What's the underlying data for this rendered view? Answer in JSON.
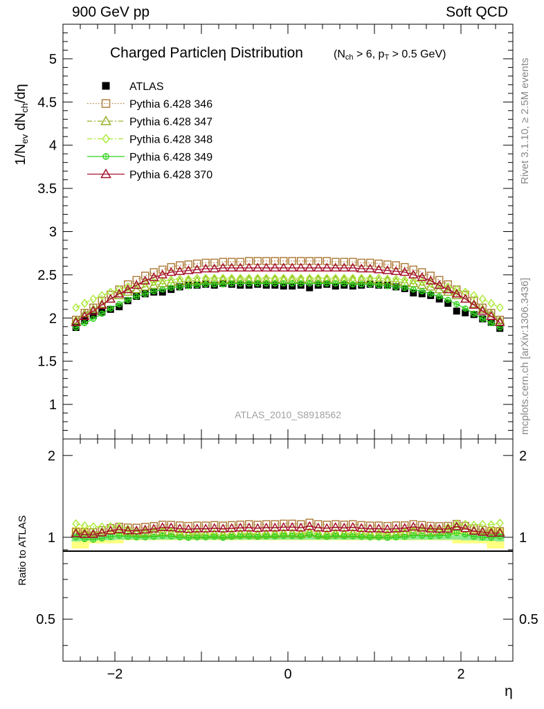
{
  "header": {
    "left": "900 GeV pp",
    "right": "Soft QCD"
  },
  "side_labels": {
    "rivet": "Rivet 3.1.10, ≥ 2.5M events",
    "mcplots": "mcplots.cern.ch [arXiv:1306.3436]"
  },
  "watermark": "ATLAS_2010_S8918562",
  "plot_title": {
    "main": "Charged Particleη Distribution",
    "sub": "(N_ch > 6, p_T > 0.5 GeV)"
  },
  "axis_labels": {
    "y_top": "1/N_ev dN_ch/dη",
    "y_bottom": "Ratio to ATLAS",
    "x": "η"
  },
  "ticks": {
    "top_y": [
      "1",
      "1.5",
      "2",
      "2.5",
      "3",
      "3.5",
      "4",
      "4.5",
      "5"
    ],
    "bottom_y": [
      "0.5",
      "1",
      "2"
    ],
    "x": [
      "−2",
      "0",
      "2"
    ]
  },
  "chart_data": {
    "type": "scatter",
    "x_name": "eta",
    "x": [
      -2.45,
      -2.35,
      -2.25,
      -2.15,
      -2.05,
      -1.95,
      -1.85,
      -1.75,
      -1.65,
      -1.55,
      -1.45,
      -1.35,
      -1.25,
      -1.15,
      -1.05,
      -0.95,
      -0.85,
      -0.75,
      -0.65,
      -0.55,
      -0.45,
      -0.35,
      -0.25,
      -0.15,
      -0.05,
      0.05,
      0.15,
      0.25,
      0.35,
      0.45,
      0.55,
      0.65,
      0.75,
      0.85,
      0.95,
      1.05,
      1.15,
      1.25,
      1.35,
      1.45,
      1.55,
      1.65,
      1.75,
      1.85,
      1.95,
      2.05,
      2.15,
      2.25,
      2.35,
      2.45
    ],
    "xlim": [
      -2.6,
      2.6
    ],
    "main_ylim": [
      0.6,
      5.4
    ],
    "ratio_ylim": [
      0.35,
      2.3
    ],
    "ratio_scale": "log",
    "series": [
      {
        "name": "ATLAS",
        "color": "#000000",
        "marker": "square-filled",
        "line": "none",
        "values": [
          1.89,
          1.97,
          2.03,
          2.07,
          2.1,
          2.13,
          2.2,
          2.25,
          2.28,
          2.3,
          2.3,
          2.33,
          2.36,
          2.38,
          2.38,
          2.39,
          2.38,
          2.4,
          2.39,
          2.38,
          2.38,
          2.39,
          2.38,
          2.38,
          2.37,
          2.37,
          2.38,
          2.35,
          2.38,
          2.39,
          2.37,
          2.38,
          2.37,
          2.38,
          2.39,
          2.38,
          2.38,
          2.36,
          2.34,
          2.29,
          2.28,
          2.26,
          2.22,
          2.17,
          2.08,
          2.06,
          2.04,
          1.99,
          1.95,
          1.88
        ]
      },
      {
        "name": "Pythia 6.428 346",
        "color": "#b07e3e",
        "marker": "square-open",
        "line": "dotted",
        "values": [
          1.98,
          2.06,
          2.12,
          2.2,
          2.27,
          2.33,
          2.39,
          2.44,
          2.49,
          2.53,
          2.56,
          2.59,
          2.61,
          2.62,
          2.63,
          2.64,
          2.64,
          2.65,
          2.65,
          2.65,
          2.66,
          2.66,
          2.66,
          2.66,
          2.66,
          2.66,
          2.66,
          2.66,
          2.66,
          2.66,
          2.65,
          2.65,
          2.65,
          2.64,
          2.64,
          2.63,
          2.62,
          2.61,
          2.59,
          2.56,
          2.53,
          2.49,
          2.44,
          2.39,
          2.33,
          2.27,
          2.2,
          2.12,
          2.06,
          1.98
        ]
      },
      {
        "name": "Pythia 6.428 347",
        "color": "#94b026",
        "marker": "triangle-open",
        "line": "dashdot",
        "values": [
          1.97,
          2.05,
          2.1,
          2.16,
          2.22,
          2.26,
          2.3,
          2.33,
          2.36,
          2.38,
          2.4,
          2.41,
          2.42,
          2.43,
          2.43,
          2.44,
          2.44,
          2.44,
          2.44,
          2.44,
          2.44,
          2.44,
          2.44,
          2.44,
          2.44,
          2.44,
          2.44,
          2.44,
          2.44,
          2.44,
          2.44,
          2.44,
          2.44,
          2.44,
          2.44,
          2.43,
          2.43,
          2.42,
          2.41,
          2.4,
          2.38,
          2.36,
          2.33,
          2.3,
          2.26,
          2.22,
          2.16,
          2.1,
          2.05,
          1.97
        ]
      },
      {
        "name": "Pythia 6.428 348",
        "color": "#a8e832",
        "marker": "diamond-open",
        "line": "dashdot",
        "values": [
          2.12,
          2.17,
          2.22,
          2.26,
          2.3,
          2.33,
          2.36,
          2.38,
          2.4,
          2.42,
          2.43,
          2.44,
          2.45,
          2.45,
          2.46,
          2.46,
          2.46,
          2.46,
          2.46,
          2.46,
          2.46,
          2.46,
          2.46,
          2.46,
          2.46,
          2.46,
          2.46,
          2.46,
          2.46,
          2.46,
          2.46,
          2.46,
          2.46,
          2.46,
          2.46,
          2.46,
          2.45,
          2.45,
          2.44,
          2.43,
          2.42,
          2.4,
          2.38,
          2.36,
          2.33,
          2.3,
          2.26,
          2.22,
          2.17,
          2.12
        ]
      },
      {
        "name": "Pythia 6.428 349",
        "color": "#32d21e",
        "marker": "circle-plus",
        "line": "solid",
        "values": [
          1.89,
          1.94,
          1.99,
          2.05,
          2.11,
          2.16,
          2.21,
          2.25,
          2.28,
          2.31,
          2.33,
          2.35,
          2.36,
          2.37,
          2.38,
          2.39,
          2.39,
          2.39,
          2.4,
          2.4,
          2.4,
          2.4,
          2.4,
          2.4,
          2.4,
          2.4,
          2.4,
          2.4,
          2.4,
          2.4,
          2.4,
          2.4,
          2.39,
          2.39,
          2.39,
          2.38,
          2.37,
          2.36,
          2.35,
          2.33,
          2.31,
          2.28,
          2.25,
          2.21,
          2.16,
          2.11,
          2.05,
          1.99,
          1.94,
          1.89
        ]
      },
      {
        "name": "Pythia 6.428 370",
        "color": "#a5122c",
        "marker": "triangle-open",
        "line": "solid",
        "values": [
          1.95,
          2.02,
          2.08,
          2.15,
          2.22,
          2.28,
          2.33,
          2.38,
          2.43,
          2.47,
          2.5,
          2.53,
          2.54,
          2.55,
          2.56,
          2.57,
          2.57,
          2.58,
          2.58,
          2.58,
          2.58,
          2.58,
          2.58,
          2.58,
          2.58,
          2.58,
          2.58,
          2.58,
          2.58,
          2.58,
          2.58,
          2.58,
          2.58,
          2.57,
          2.57,
          2.56,
          2.55,
          2.54,
          2.53,
          2.5,
          2.47,
          2.43,
          2.38,
          2.33,
          2.28,
          2.22,
          2.15,
          2.08,
          2.02,
          1.95
        ]
      }
    ],
    "ratio_bands": {
      "stat_color": "#8ee88e",
      "syst_color": "#ffff80",
      "stat": [
        0.035,
        0.03,
        0.03,
        0.025,
        0.025,
        0.02,
        0.02,
        0.02,
        0.02,
        0.02,
        0.02,
        0.02,
        0.02,
        0.02,
        0.02,
        0.02,
        0.02,
        0.02,
        0.02,
        0.02,
        0.02,
        0.02,
        0.02,
        0.02,
        0.02,
        0.02,
        0.02,
        0.02,
        0.02,
        0.02,
        0.02,
        0.02,
        0.02,
        0.02,
        0.02,
        0.02,
        0.02,
        0.02,
        0.02,
        0.02,
        0.02,
        0.02,
        0.02,
        0.02,
        0.02,
        0.025,
        0.025,
        0.03,
        0.03,
        0.035
      ],
      "syst": [
        0.09,
        0.09,
        0.05,
        0.05,
        0.05,
        0.05,
        0.025,
        0.025,
        0.025,
        0.025,
        0.025,
        0.025,
        0.025,
        0.025,
        0.025,
        0.025,
        0.025,
        0.025,
        0.025,
        0.025,
        0.025,
        0.025,
        0.025,
        0.025,
        0.025,
        0.025,
        0.025,
        0.025,
        0.025,
        0.025,
        0.025,
        0.025,
        0.025,
        0.025,
        0.025,
        0.025,
        0.025,
        0.025,
        0.025,
        0.025,
        0.025,
        0.025,
        0.025,
        0.025,
        0.05,
        0.05,
        0.05,
        0.05,
        0.09,
        0.09
      ]
    }
  }
}
